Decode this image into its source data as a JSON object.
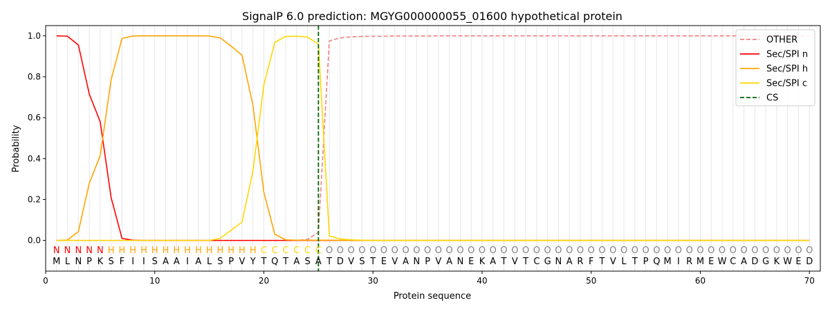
{
  "chart_data": {
    "type": "line",
    "title": "SignalP 6.0 prediction: MGYG000000055_01600 hypothetical protein",
    "xlabel": "Protein sequence",
    "ylabel": "Probability",
    "xlim": [
      0,
      71
    ],
    "ylim": [
      -0.15,
      1.05
    ],
    "xticks": [
      0,
      10,
      20,
      30,
      40,
      50,
      60,
      70
    ],
    "yticks": [
      0.0,
      0.2,
      0.4,
      0.6,
      0.8,
      1.0
    ],
    "xtick_labels": [
      "0",
      "10",
      "20",
      "30",
      "40",
      "50",
      "60",
      "70"
    ],
    "ytick_labels": [
      "0.0",
      "0.2",
      "0.4",
      "0.6",
      "0.8",
      "1.0"
    ],
    "legend_position": "top-right",
    "sequence": [
      "M",
      "L",
      "N",
      "P",
      "K",
      "S",
      "F",
      "I",
      "I",
      "S",
      "A",
      "A",
      "I",
      "A",
      "L",
      "S",
      "P",
      "V",
      "Y",
      "T",
      "Q",
      "T",
      "A",
      "S",
      "A",
      "T",
      "D",
      "V",
      "S",
      "T",
      "E",
      "V",
      "A",
      "N",
      "P",
      "V",
      "A",
      "N",
      "E",
      "K",
      "A",
      "T",
      "V",
      "T",
      "C",
      "G",
      "N",
      "A",
      "R",
      "F",
      "T",
      "V",
      "L",
      "T",
      "P",
      "Q",
      "M",
      "I",
      "R",
      "M",
      "E",
      "W",
      "C",
      "A",
      "D",
      "G",
      "K",
      "W",
      "E",
      "D"
    ],
    "region_labels": [
      "N",
      "N",
      "N",
      "N",
      "N",
      "H",
      "H",
      "H",
      "H",
      "H",
      "H",
      "H",
      "H",
      "H",
      "H",
      "H",
      "H",
      "H",
      "H",
      "C",
      "C",
      "C",
      "C",
      "C",
      "C",
      "O",
      "O",
      "O",
      "O",
      "O",
      "O",
      "O",
      "O",
      "O",
      "O",
      "O",
      "O",
      "O",
      "O",
      "O",
      "O",
      "O",
      "O",
      "O",
      "O",
      "O",
      "O",
      "O",
      "O",
      "O",
      "O",
      "O",
      "O",
      "O",
      "O",
      "O",
      "O",
      "O",
      "O",
      "O",
      "O",
      "O",
      "O",
      "O",
      "O",
      "O",
      "O",
      "O",
      "O",
      "O"
    ],
    "region_colors": {
      "N": "#ff0000",
      "H": "#ffa500",
      "C": "#ffd700",
      "O": "#808080"
    },
    "series": [
      {
        "name": "OTHER",
        "color": "#f08080",
        "dash": "dashed",
        "values": [
          0,
          0,
          0,
          0,
          0,
          0,
          0,
          0,
          0,
          0,
          0,
          0,
          0,
          0,
          0,
          0,
          0,
          0,
          0,
          0,
          0,
          0,
          0,
          0.005,
          0.04,
          0.975,
          0.99,
          0.995,
          0.997,
          0.998,
          0.998,
          0.999,
          0.999,
          0.999,
          0.999,
          1,
          1,
          1,
          1,
          1,
          1,
          1,
          1,
          1,
          1,
          1,
          1,
          1,
          1,
          1,
          1,
          1,
          1,
          1,
          1,
          1,
          1,
          1,
          1,
          1,
          1,
          1,
          1,
          1,
          1,
          1,
          1,
          1,
          1,
          1
        ]
      },
      {
        "name": "Sec/SPI n",
        "color": "#ff0000",
        "dash": "solid",
        "values": [
          1.0,
          0.998,
          0.955,
          0.715,
          0.58,
          0.21,
          0.01,
          0.001,
          0,
          0,
          0,
          0,
          0,
          0,
          0,
          0,
          0,
          0,
          0,
          0,
          0,
          0,
          0,
          0,
          0,
          0,
          0,
          0,
          0,
          0,
          0,
          0,
          0,
          0,
          0,
          0,
          0,
          0,
          0,
          0,
          0,
          0,
          0,
          0,
          0,
          0,
          0,
          0,
          0,
          0,
          0,
          0,
          0,
          0,
          0,
          0,
          0,
          0,
          0,
          0,
          0,
          0,
          0,
          0,
          0,
          0,
          0,
          0,
          0,
          0
        ]
      },
      {
        "name": "Sec/SPI h",
        "color": "#ffa500",
        "dash": "solid",
        "values": [
          0,
          0.002,
          0.043,
          0.28,
          0.415,
          0.785,
          0.987,
          0.999,
          1,
          1,
          1,
          1,
          1,
          1,
          0.999,
          0.99,
          0.95,
          0.905,
          0.66,
          0.235,
          0.03,
          0.003,
          0.001,
          0.001,
          0.001,
          0.001,
          0,
          0,
          0,
          0,
          0,
          0,
          0,
          0,
          0,
          0,
          0,
          0,
          0,
          0,
          0,
          0,
          0,
          0,
          0,
          0,
          0,
          0,
          0,
          0,
          0,
          0,
          0,
          0,
          0,
          0,
          0,
          0,
          0,
          0,
          0,
          0,
          0,
          0,
          0,
          0,
          0,
          0,
          0,
          0
        ]
      },
      {
        "name": "Sec/SPI c",
        "color": "#ffd700",
        "dash": "solid",
        "values": [
          0,
          0,
          0,
          0,
          0,
          0,
          0,
          0,
          0,
          0,
          0,
          0,
          0,
          0,
          0,
          0.01,
          0.05,
          0.09,
          0.34,
          0.76,
          0.968,
          0.997,
          0.998,
          0.994,
          0.96,
          0.022,
          0.007,
          0.003,
          0.001,
          0,
          0,
          0,
          0,
          0,
          0,
          0,
          0,
          0,
          0,
          0,
          0,
          0,
          0,
          0,
          0,
          0,
          0,
          0,
          0,
          0,
          0,
          0,
          0,
          0,
          0,
          0,
          0,
          0,
          0,
          0,
          0,
          0,
          0,
          0,
          0,
          0,
          0,
          0,
          0,
          0
        ]
      },
      {
        "name": "CS",
        "color": "#006400",
        "dash": "dashed",
        "vline_x": 25
      }
    ]
  }
}
